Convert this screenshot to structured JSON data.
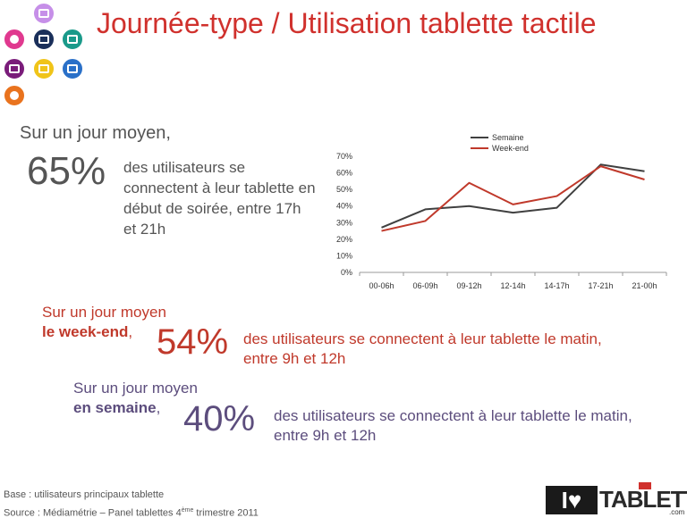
{
  "title": "Journée-type / Utilisation tablette tactile",
  "icons": [
    {
      "name": "video-icon",
      "color": "#c68fe8"
    },
    {
      "name": "disc-icon",
      "color": "#e0398f"
    },
    {
      "name": "clapper-icon",
      "color": "#1a2f5a"
    },
    {
      "name": "device-icon",
      "color": "#1a9a8a"
    },
    {
      "name": "phone-icon",
      "color": "#7a1c7a"
    },
    {
      "name": "radio-icon",
      "color": "#f0c419"
    },
    {
      "name": "screen-icon",
      "color": "#2a70c8"
    },
    {
      "name": "mouse-icon",
      "color": "#e9731e"
    }
  ],
  "section1": {
    "label": "Sur un jour moyen,",
    "big": "65%",
    "text": "des utilisateurs se connectent à leur tablette en début de soirée, entre 17h et 21h"
  },
  "section2": {
    "label1": "Sur un jour moyen",
    "label2": "le week-end",
    "comma": ",",
    "big": "54%",
    "text": "des utilisateurs se connectent à leur tablette le matin, entre 9h et 12h"
  },
  "section3": {
    "label1": "Sur un jour moyen",
    "label2": "en semaine",
    "comma": ",",
    "big": "40%",
    "text": "des utilisateurs se connectent à leur tablette le matin, entre 9h et 12h"
  },
  "footer": {
    "base": "Base : utilisateurs principaux tablette",
    "source_prefix": "Source : Médiamétrie – Panel tablettes 4",
    "source_sup": "ème",
    "source_suffix": " trimestre 2011"
  },
  "brand": {
    "mark": "I♥",
    "text": "TABLETTE",
    "suffix": ".com"
  },
  "chart_data": {
    "type": "line",
    "categories": [
      "00-06h",
      "06-09h",
      "09-12h",
      "12-14h",
      "14-17h",
      "17-21h",
      "21-00h"
    ],
    "series": [
      {
        "name": "Semaine",
        "color": "#404040",
        "values": [
          27,
          38,
          40,
          36,
          39,
          65,
          61
        ]
      },
      {
        "name": "Week-end",
        "color": "#c0392b",
        "values": [
          25,
          31,
          54,
          41,
          46,
          64,
          56
        ]
      }
    ],
    "yticks": [
      "0%",
      "10%",
      "20%",
      "30%",
      "40%",
      "50%",
      "60%",
      "70%"
    ],
    "ylim": [
      0,
      70
    ],
    "grid": false,
    "legend": "top"
  }
}
